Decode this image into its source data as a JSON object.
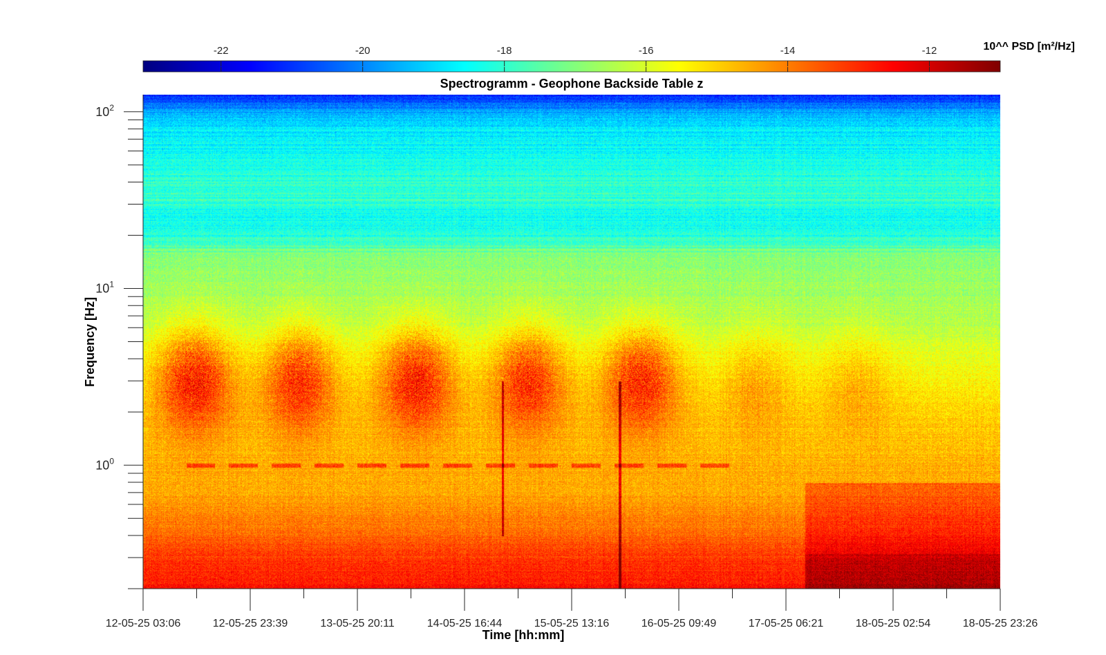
{
  "chart_data": {
    "type": "heatmap",
    "title": "Spectrogramm - Geophone Backside Table z",
    "xlabel": "Time [hh:mm]",
    "ylabel": "Frequency [Hz]",
    "x_tick_labels": [
      "12-05-25 03:06",
      "12-05-25 23:39",
      "13-05-25 20:11",
      "14-05-25 16:44",
      "15-05-25 13:16",
      "16-05-25 09:49",
      "17-05-25 06:21",
      "18-05-25 02:54",
      "18-05-25 23:26"
    ],
    "xlim": [
      "12-05-25 03:06",
      "18-05-25 23:26"
    ],
    "yscale": "log",
    "ylim": [
      0.2,
      125
    ],
    "y_ticks": [
      {
        "base": "10",
        "exp": "0",
        "value": 1
      },
      {
        "base": "10",
        "exp": "1",
        "value": 10
      },
      {
        "base": "10",
        "exp": "2",
        "value": 100
      }
    ],
    "colorbar": {
      "label": "10^^ PSD [m²/Hz]",
      "range": [
        -23.1,
        -11.0
      ],
      "ticks": [
        -22,
        -20,
        -18,
        -16,
        -14,
        -12
      ],
      "tick_labels": [
        "-22",
        "-20",
        "-18",
        "-16",
        "-14",
        "-12"
      ],
      "colormap": "jet",
      "colors": [
        "#00007f",
        "#0000ff",
        "#007fff",
        "#00ffff",
        "#7fff7f",
        "#ffff00",
        "#ff7f00",
        "#ff0000",
        "#7f0000"
      ]
    },
    "daily_bursts": {
      "centers": [
        "12-05-25 13:00",
        "13-05-25 09:00",
        "14-05-25 07:30",
        "15-05-25 05:00",
        "16-05-25 02:30",
        "17-05-25 00:30",
        "17-05-25 20:00"
      ],
      "freq_range_hz": [
        1.5,
        6
      ],
      "level": -13.5
    },
    "band_1hz": {
      "frequency_hz": 1.0,
      "level": -14.2
    },
    "low_freq_strong_period": [
      "17-05-25 10:00",
      "18-05-25 23:26"
    ],
    "impulses": [
      {
        "time": "15-05-25 00:00",
        "freq_range_hz": [
          0.4,
          3.0
        ]
      },
      {
        "time": "15-05-25 22:30",
        "freq_range_hz": [
          0.2,
          3.0
        ]
      }
    ],
    "grid": false,
    "legend": "colorbar-top"
  }
}
